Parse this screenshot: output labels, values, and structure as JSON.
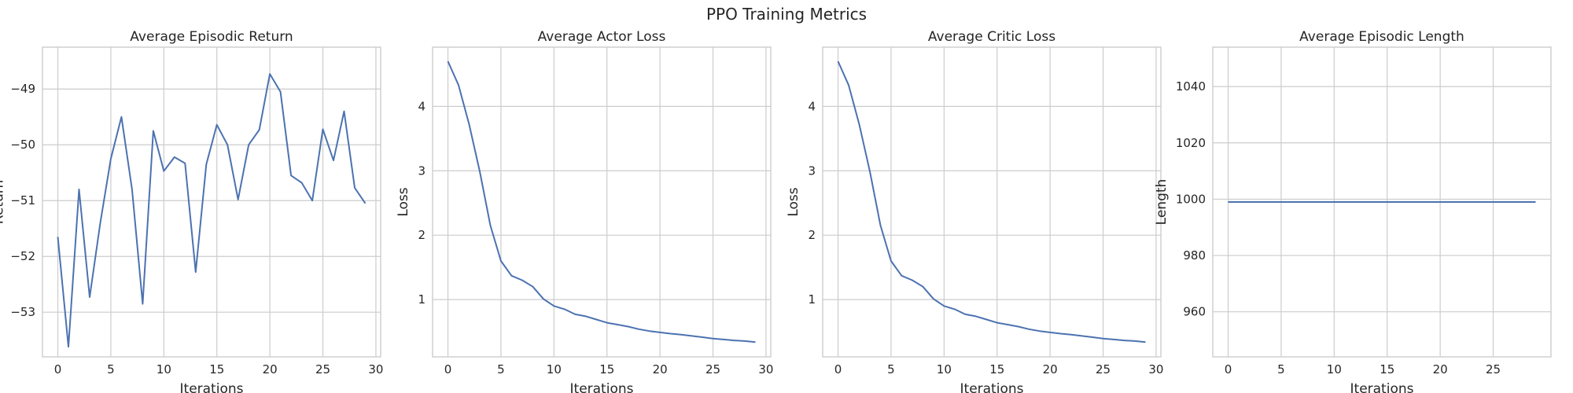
{
  "figure": {
    "title": "PPO Training Metrics"
  },
  "chart_data": [
    {
      "type": "line",
      "title": "Average Episodic Return",
      "xlabel": "Iterations",
      "ylabel": "Return",
      "xlim": [
        -1.45,
        30.45
      ],
      "ylim": [
        -53.8,
        -48.25
      ],
      "xticks": [
        0,
        5,
        10,
        15,
        20,
        25,
        30
      ],
      "yticks": [
        -53,
        -52,
        -51,
        -50,
        -49
      ],
      "grid": true,
      "series_color": "#4c72b0",
      "x": [
        0,
        1,
        2,
        3,
        4,
        5,
        6,
        7,
        8,
        9,
        10,
        11,
        12,
        13,
        14,
        15,
        16,
        17,
        18,
        19,
        20,
        21,
        22,
        23,
        24,
        25,
        26,
        27,
        28,
        29
      ],
      "y": [
        -51.65,
        -53.62,
        -50.8,
        -52.73,
        -51.4,
        -50.25,
        -49.5,
        -50.8,
        -52.85,
        -49.75,
        -50.47,
        -50.22,
        -50.33,
        -52.28,
        -50.35,
        -49.64,
        -50.0,
        -50.98,
        -50.0,
        -49.73,
        -48.73,
        -49.05,
        -50.55,
        -50.68,
        -51.0,
        -49.72,
        -50.28,
        -49.4,
        -50.77,
        -51.05
      ]
    },
    {
      "type": "line",
      "title": "Average Actor Loss",
      "xlabel": "Iterations",
      "ylabel": "Loss",
      "xlim": [
        -1.45,
        30.45
      ],
      "ylim": [
        0.11,
        4.92
      ],
      "xticks": [
        0,
        5,
        10,
        15,
        20,
        25,
        30
      ],
      "yticks": [
        1,
        2,
        3,
        4
      ],
      "grid": true,
      "series_color": "#4c72b0",
      "x": [
        0,
        1,
        2,
        3,
        4,
        5,
        6,
        7,
        8,
        9,
        10,
        11,
        12,
        13,
        14,
        15,
        16,
        17,
        18,
        19,
        20,
        21,
        22,
        23,
        24,
        25,
        26,
        27,
        28,
        29
      ],
      "y": [
        4.7,
        4.33,
        3.72,
        2.99,
        2.15,
        1.6,
        1.37,
        1.3,
        1.2,
        1.01,
        0.9,
        0.85,
        0.77,
        0.74,
        0.69,
        0.64,
        0.61,
        0.58,
        0.54,
        0.51,
        0.49,
        0.47,
        0.455,
        0.435,
        0.415,
        0.395,
        0.38,
        0.365,
        0.355,
        0.34
      ]
    },
    {
      "type": "line",
      "title": "Average Critic Loss",
      "xlabel": "Iterations",
      "ylabel": "Loss",
      "xlim": [
        -1.45,
        30.45
      ],
      "ylim": [
        0.11,
        4.92
      ],
      "xticks": [
        0,
        5,
        10,
        15,
        20,
        25,
        30
      ],
      "yticks": [
        1,
        2,
        3,
        4
      ],
      "grid": true,
      "series_color": "#4c72b0",
      "x": [
        0,
        1,
        2,
        3,
        4,
        5,
        6,
        7,
        8,
        9,
        10,
        11,
        12,
        13,
        14,
        15,
        16,
        17,
        18,
        19,
        20,
        21,
        22,
        23,
        24,
        25,
        26,
        27,
        28,
        29
      ],
      "y": [
        4.7,
        4.33,
        3.72,
        2.99,
        2.15,
        1.6,
        1.37,
        1.3,
        1.2,
        1.01,
        0.9,
        0.85,
        0.77,
        0.74,
        0.69,
        0.64,
        0.61,
        0.58,
        0.54,
        0.51,
        0.49,
        0.47,
        0.455,
        0.435,
        0.415,
        0.395,
        0.38,
        0.365,
        0.355,
        0.34
      ]
    },
    {
      "type": "line",
      "title": "Average Episodic Length",
      "xlabel": "Iterations",
      "ylabel": "Length",
      "xlim": [
        -1.45,
        30.45
      ],
      "ylim": [
        944,
        1054
      ],
      "xticks": [
        0,
        5,
        10,
        15,
        20,
        25
      ],
      "yticks": [
        960,
        980,
        1000,
        1020,
        1040
      ],
      "grid": true,
      "series_color": "#4c72b0",
      "x": [
        0,
        1,
        2,
        3,
        4,
        5,
        6,
        7,
        8,
        9,
        10,
        11,
        12,
        13,
        14,
        15,
        16,
        17,
        18,
        19,
        20,
        21,
        22,
        23,
        24,
        25,
        26,
        27,
        28,
        29
      ],
      "y": [
        999,
        999,
        999,
        999,
        999,
        999,
        999,
        999,
        999,
        999,
        999,
        999,
        999,
        999,
        999,
        999,
        999,
        999,
        999,
        999,
        999,
        999,
        999,
        999,
        999,
        999,
        999,
        999,
        999,
        999
      ]
    }
  ]
}
